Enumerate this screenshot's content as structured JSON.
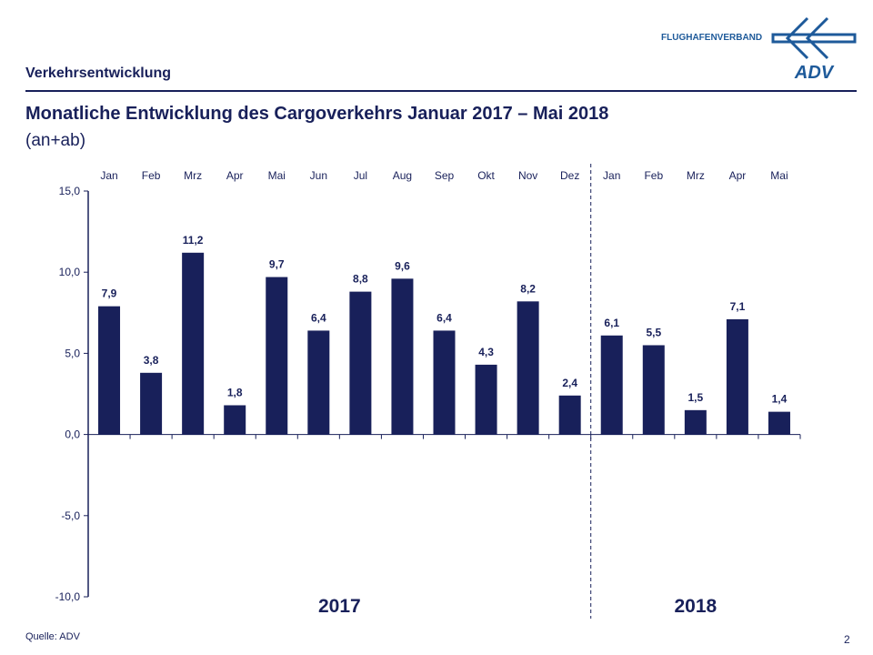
{
  "header": {
    "section": "Verkehrsentwicklung",
    "title": "Monatliche Entwicklung des Cargoverkehrs Januar 2017 – Mai 2018",
    "subtitle": "(an+ab)",
    "logo_text": "FLUGHAFENVERBAND",
    "logo_mark": "ADV"
  },
  "footer": {
    "source": "Quelle: ADV",
    "page": "2"
  },
  "colors": {
    "bar": "#18205a",
    "brand": "#1e5a9a"
  },
  "chart_data": {
    "type": "bar",
    "categories": [
      "Jan",
      "Feb",
      "Mrz",
      "Apr",
      "Mai",
      "Jun",
      "Jul",
      "Aug",
      "Sep",
      "Okt",
      "Nov",
      "Dez",
      "Jan",
      "Feb",
      "Mrz",
      "Apr",
      "Mai"
    ],
    "values": [
      7.9,
      3.8,
      11.2,
      1.8,
      9.7,
      6.4,
      8.8,
      9.6,
      6.4,
      4.3,
      8.2,
      2.4,
      6.1,
      5.5,
      1.5,
      7.1,
      1.4
    ],
    "data_labels": [
      "7,9",
      "3,8",
      "11,2",
      "1,8",
      "9,7",
      "6,4",
      "8,8",
      "9,6",
      "6,4",
      "4,3",
      "8,2",
      "2,4",
      "6,1",
      "5,5",
      "1,5",
      "7,1",
      "1,4"
    ],
    "yticks": [
      "15,0",
      "10,0",
      "5,0",
      "0,0",
      "-5,0",
      "-10,0"
    ],
    "ytick_values": [
      15,
      10,
      5,
      0,
      -5,
      -10
    ],
    "ylim": [
      -10,
      15
    ],
    "groups": [
      {
        "label": "2017",
        "count": 12
      },
      {
        "label": "2018",
        "count": 5
      }
    ],
    "grid": false,
    "legend": "none"
  }
}
